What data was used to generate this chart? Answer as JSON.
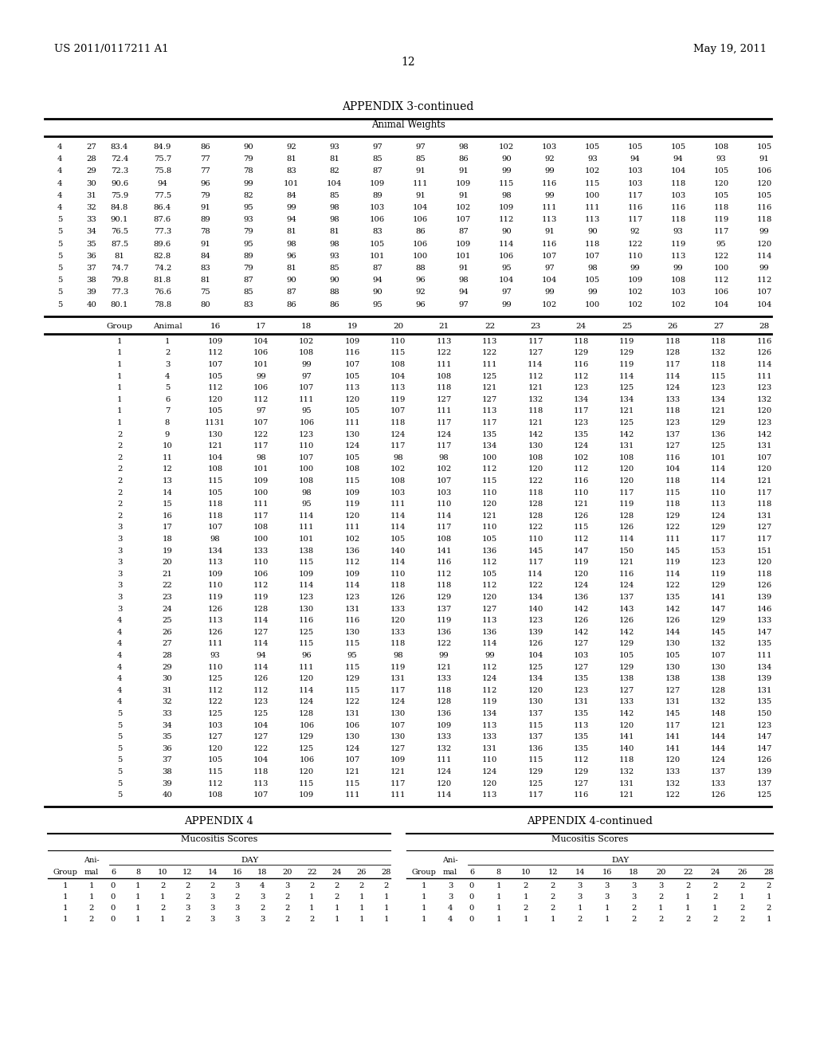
{
  "header_left": "US 2011/0117211 A1",
  "header_right": "May 19, 2011",
  "page_number": "12",
  "appendix3_title": "APPENDIX 3-continued",
  "appendix3_subtitle": "Animal Weights",
  "appendix3_top_data": [
    [
      "4",
      "27",
      "83.4",
      "84.9",
      "86",
      "90",
      "92",
      "93",
      "97",
      "97",
      "98",
      "102",
      "103",
      "105",
      "105",
      "105",
      "108",
      "105"
    ],
    [
      "4",
      "28",
      "72.4",
      "75.7",
      "77",
      "79",
      "81",
      "81",
      "85",
      "85",
      "86",
      "90",
      "92",
      "93",
      "94",
      "94",
      "93",
      "91"
    ],
    [
      "4",
      "29",
      "72.3",
      "75.8",
      "77",
      "78",
      "83",
      "82",
      "87",
      "91",
      "91",
      "99",
      "99",
      "102",
      "103",
      "104",
      "105",
      "106"
    ],
    [
      "4",
      "30",
      "90.6",
      "94",
      "96",
      "99",
      "101",
      "104",
      "109",
      "111",
      "109",
      "115",
      "116",
      "115",
      "103",
      "118",
      "120",
      "120"
    ],
    [
      "4",
      "31",
      "75.9",
      "77.5",
      "79",
      "82",
      "84",
      "85",
      "89",
      "91",
      "91",
      "98",
      "99",
      "100",
      "117",
      "103",
      "105",
      "105"
    ],
    [
      "4",
      "32",
      "84.8",
      "86.4",
      "91",
      "95",
      "99",
      "98",
      "103",
      "104",
      "102",
      "109",
      "111",
      "111",
      "116",
      "116",
      "118",
      "116"
    ],
    [
      "5",
      "33",
      "90.1",
      "87.6",
      "89",
      "93",
      "94",
      "98",
      "106",
      "106",
      "107",
      "112",
      "113",
      "113",
      "117",
      "118",
      "119",
      "118"
    ],
    [
      "5",
      "34",
      "76.5",
      "77.3",
      "78",
      "79",
      "81",
      "81",
      "83",
      "86",
      "87",
      "90",
      "91",
      "90",
      "92",
      "93",
      "117",
      "99"
    ],
    [
      "5",
      "35",
      "87.5",
      "89.6",
      "91",
      "95",
      "98",
      "98",
      "105",
      "106",
      "109",
      "114",
      "116",
      "118",
      "122",
      "119",
      "95",
      "120"
    ],
    [
      "5",
      "36",
      "81",
      "82.8",
      "84",
      "89",
      "96",
      "93",
      "101",
      "100",
      "101",
      "106",
      "107",
      "107",
      "110",
      "113",
      "122",
      "114"
    ],
    [
      "5",
      "37",
      "74.7",
      "74.2",
      "83",
      "79",
      "81",
      "85",
      "87",
      "88",
      "91",
      "95",
      "97",
      "98",
      "99",
      "99",
      "100",
      "99"
    ],
    [
      "5",
      "38",
      "79.8",
      "81.8",
      "81",
      "87",
      "90",
      "90",
      "94",
      "96",
      "98",
      "104",
      "104",
      "105",
      "109",
      "108",
      "112",
      "112"
    ],
    [
      "5",
      "39",
      "77.3",
      "76.6",
      "75",
      "85",
      "87",
      "88",
      "90",
      "92",
      "94",
      "97",
      "99",
      "99",
      "102",
      "103",
      "106",
      "107"
    ],
    [
      "5",
      "40",
      "80.1",
      "78.8",
      "80",
      "83",
      "86",
      "86",
      "95",
      "96",
      "97",
      "99",
      "102",
      "100",
      "102",
      "102",
      "104",
      "104"
    ]
  ],
  "appendix3_bottom_data": [
    [
      "1",
      "1",
      "109",
      "104",
      "102",
      "109",
      "110",
      "113",
      "113",
      "117",
      "118",
      "119",
      "118",
      "118",
      "116"
    ],
    [
      "1",
      "2",
      "112",
      "106",
      "108",
      "116",
      "115",
      "122",
      "122",
      "127",
      "129",
      "129",
      "128",
      "132",
      "126"
    ],
    [
      "1",
      "3",
      "107",
      "101",
      "99",
      "107",
      "108",
      "111",
      "111",
      "114",
      "116",
      "119",
      "117",
      "118",
      "114"
    ],
    [
      "1",
      "4",
      "105",
      "99",
      "97",
      "105",
      "104",
      "108",
      "125",
      "112",
      "112",
      "114",
      "114",
      "115",
      "111"
    ],
    [
      "1",
      "5",
      "112",
      "106",
      "107",
      "113",
      "113",
      "118",
      "121",
      "121",
      "123",
      "125",
      "124",
      "123",
      "123"
    ],
    [
      "1",
      "6",
      "120",
      "112",
      "111",
      "120",
      "119",
      "127",
      "127",
      "132",
      "134",
      "134",
      "133",
      "134",
      "132"
    ],
    [
      "1",
      "7",
      "105",
      "97",
      "95",
      "105",
      "107",
      "111",
      "113",
      "118",
      "117",
      "121",
      "118",
      "121",
      "120"
    ],
    [
      "1",
      "8",
      "1131",
      "107",
      "106",
      "111",
      "118",
      "117",
      "117",
      "121",
      "123",
      "125",
      "123",
      "129",
      "123"
    ],
    [
      "2",
      "9",
      "130",
      "122",
      "123",
      "130",
      "124",
      "124",
      "135",
      "142",
      "135",
      "142",
      "137",
      "136",
      "142"
    ],
    [
      "2",
      "10",
      "121",
      "117",
      "110",
      "124",
      "117",
      "117",
      "134",
      "130",
      "124",
      "131",
      "127",
      "125",
      "131"
    ],
    [
      "2",
      "11",
      "104",
      "98",
      "107",
      "105",
      "98",
      "98",
      "100",
      "108",
      "102",
      "108",
      "116",
      "101",
      "107"
    ],
    [
      "2",
      "12",
      "108",
      "101",
      "100",
      "108",
      "102",
      "102",
      "112",
      "120",
      "112",
      "120",
      "104",
      "114",
      "120"
    ],
    [
      "2",
      "13",
      "115",
      "109",
      "108",
      "115",
      "108",
      "107",
      "115",
      "122",
      "116",
      "120",
      "118",
      "114",
      "121"
    ],
    [
      "2",
      "14",
      "105",
      "100",
      "98",
      "109",
      "103",
      "103",
      "110",
      "118",
      "110",
      "117",
      "115",
      "110",
      "117"
    ],
    [
      "2",
      "15",
      "118",
      "111",
      "95",
      "119",
      "111",
      "110",
      "120",
      "128",
      "121",
      "119",
      "118",
      "113",
      "118"
    ],
    [
      "2",
      "16",
      "118",
      "117",
      "114",
      "120",
      "114",
      "114",
      "121",
      "128",
      "126",
      "128",
      "129",
      "124",
      "131"
    ],
    [
      "3",
      "17",
      "107",
      "108",
      "111",
      "111",
      "114",
      "117",
      "110",
      "122",
      "115",
      "126",
      "122",
      "129",
      "127"
    ],
    [
      "3",
      "18",
      "98",
      "100",
      "101",
      "102",
      "105",
      "108",
      "105",
      "110",
      "112",
      "114",
      "111",
      "117",
      "117"
    ],
    [
      "3",
      "19",
      "134",
      "133",
      "138",
      "136",
      "140",
      "141",
      "136",
      "145",
      "147",
      "150",
      "145",
      "153",
      "151"
    ],
    [
      "3",
      "20",
      "113",
      "110",
      "115",
      "112",
      "114",
      "116",
      "112",
      "117",
      "119",
      "121",
      "119",
      "123",
      "120"
    ],
    [
      "3",
      "21",
      "109",
      "106",
      "109",
      "109",
      "110",
      "112",
      "105",
      "114",
      "120",
      "116",
      "114",
      "119",
      "118"
    ],
    [
      "3",
      "22",
      "110",
      "112",
      "114",
      "114",
      "118",
      "118",
      "112",
      "122",
      "124",
      "124",
      "122",
      "129",
      "126"
    ],
    [
      "3",
      "23",
      "119",
      "119",
      "123",
      "123",
      "126",
      "129",
      "120",
      "134",
      "136",
      "137",
      "135",
      "141",
      "139"
    ],
    [
      "3",
      "24",
      "126",
      "128",
      "130",
      "131",
      "133",
      "137",
      "127",
      "140",
      "142",
      "143",
      "142",
      "147",
      "146"
    ],
    [
      "4",
      "25",
      "113",
      "114",
      "116",
      "116",
      "120",
      "119",
      "113",
      "123",
      "126",
      "126",
      "126",
      "129",
      "133"
    ],
    [
      "4",
      "26",
      "126",
      "127",
      "125",
      "130",
      "133",
      "136",
      "136",
      "139",
      "142",
      "142",
      "144",
      "145",
      "147"
    ],
    [
      "4",
      "27",
      "111",
      "114",
      "115",
      "115",
      "118",
      "122",
      "114",
      "126",
      "127",
      "129",
      "130",
      "132",
      "135"
    ],
    [
      "4",
      "28",
      "93",
      "94",
      "96",
      "95",
      "98",
      "99",
      "99",
      "104",
      "103",
      "105",
      "105",
      "107",
      "111"
    ],
    [
      "4",
      "29",
      "110",
      "114",
      "111",
      "115",
      "119",
      "121",
      "112",
      "125",
      "127",
      "129",
      "130",
      "130",
      "134"
    ],
    [
      "4",
      "30",
      "125",
      "126",
      "120",
      "129",
      "131",
      "133",
      "124",
      "134",
      "135",
      "138",
      "138",
      "138",
      "139"
    ],
    [
      "4",
      "31",
      "112",
      "112",
      "114",
      "115",
      "117",
      "118",
      "112",
      "120",
      "123",
      "127",
      "127",
      "128",
      "131"
    ],
    [
      "4",
      "32",
      "122",
      "123",
      "124",
      "122",
      "124",
      "128",
      "119",
      "130",
      "131",
      "133",
      "131",
      "132",
      "135"
    ],
    [
      "5",
      "33",
      "125",
      "125",
      "128",
      "131",
      "130",
      "136",
      "134",
      "137",
      "135",
      "142",
      "145",
      "148",
      "150"
    ],
    [
      "5",
      "34",
      "103",
      "104",
      "106",
      "106",
      "107",
      "109",
      "113",
      "115",
      "113",
      "120",
      "117",
      "121",
      "123"
    ],
    [
      "5",
      "35",
      "127",
      "127",
      "129",
      "130",
      "130",
      "133",
      "133",
      "137",
      "135",
      "141",
      "141",
      "144",
      "147"
    ],
    [
      "5",
      "36",
      "120",
      "122",
      "125",
      "124",
      "127",
      "132",
      "131",
      "136",
      "135",
      "140",
      "141",
      "144",
      "147"
    ],
    [
      "5",
      "37",
      "105",
      "104",
      "106",
      "107",
      "109",
      "111",
      "110",
      "115",
      "112",
      "118",
      "120",
      "124",
      "126"
    ],
    [
      "5",
      "38",
      "115",
      "118",
      "120",
      "121",
      "121",
      "124",
      "124",
      "129",
      "129",
      "132",
      "133",
      "137",
      "139"
    ],
    [
      "5",
      "39",
      "112",
      "113",
      "115",
      "115",
      "117",
      "120",
      "120",
      "125",
      "127",
      "131",
      "132",
      "133",
      "137"
    ],
    [
      "5",
      "40",
      "108",
      "107",
      "109",
      "111",
      "111",
      "114",
      "113",
      "117",
      "116",
      "121",
      "122",
      "126",
      "125"
    ]
  ],
  "appendix4_title": "APPENDIX 4",
  "appendix4_subtitle": "Mucositis Scores",
  "appendix4_data": [
    [
      "1",
      "1",
      "0",
      "1",
      "2",
      "2",
      "2",
      "3",
      "4",
      "3",
      "2",
      "2",
      "2",
      "2"
    ],
    [
      "1",
      "1",
      "0",
      "1",
      "1",
      "2",
      "3",
      "2",
      "3",
      "2",
      "1",
      "2",
      "1",
      "1"
    ],
    [
      "1",
      "2",
      "0",
      "1",
      "2",
      "3",
      "3",
      "3",
      "2",
      "2",
      "1",
      "1",
      "1",
      "1"
    ],
    [
      "1",
      "2",
      "0",
      "1",
      "1",
      "2",
      "3",
      "3",
      "3",
      "2",
      "2",
      "1",
      "1",
      "1"
    ]
  ],
  "appendix4cont_title": "APPENDIX 4-continued",
  "appendix4cont_subtitle": "Mucositis Scores",
  "appendix4cont_data": [
    [
      "1",
      "3",
      "0",
      "1",
      "2",
      "2",
      "3",
      "3",
      "3",
      "3",
      "2",
      "2",
      "2",
      "2"
    ],
    [
      "1",
      "3",
      "0",
      "1",
      "1",
      "2",
      "3",
      "3",
      "3",
      "2",
      "1",
      "2",
      "1",
      "1"
    ],
    [
      "1",
      "4",
      "0",
      "1",
      "2",
      "2",
      "1",
      "1",
      "2",
      "1",
      "1",
      "1",
      "2",
      "2"
    ],
    [
      "1",
      "4",
      "0",
      "1",
      "1",
      "1",
      "2",
      "1",
      "2",
      "2",
      "2",
      "2",
      "2",
      "1"
    ]
  ],
  "background_color": "#ffffff",
  "text_color": "#000000"
}
